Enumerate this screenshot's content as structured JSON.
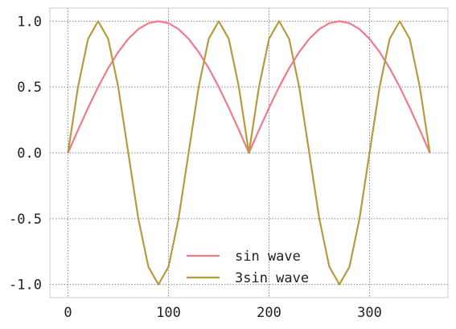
{
  "chart_data": {
    "type": "line",
    "title": "",
    "xlabel": "",
    "ylabel": "",
    "xlim": [
      -18,
      378
    ],
    "ylim": [
      -1.1,
      1.1
    ],
    "xticks": [
      0,
      100,
      200,
      300
    ],
    "xtick_labels": [
      "0",
      "100",
      "200",
      "300"
    ],
    "yticks": [
      1.0,
      0.5,
      0.0,
      -0.5,
      -1.0
    ],
    "ytick_labels": [
      "1.0",
      "0.5",
      "0.0",
      "-0.5",
      "-1.0"
    ],
    "grid": true,
    "legend_position": "lower-center",
    "x": [
      0,
      10,
      20,
      30,
      40,
      50,
      60,
      70,
      80,
      90,
      100,
      110,
      120,
      130,
      140,
      150,
      160,
      170,
      180,
      190,
      200,
      210,
      220,
      230,
      240,
      250,
      260,
      270,
      280,
      290,
      300,
      310,
      320,
      330,
      340,
      350,
      360
    ],
    "series": [
      {
        "name": "sin wave",
        "color": "#f07a8a",
        "values": [
          0.0,
          0.174,
          0.342,
          0.5,
          0.643,
          0.766,
          0.866,
          0.94,
          0.985,
          1.0,
          0.985,
          0.94,
          0.866,
          0.766,
          0.643,
          0.5,
          0.342,
          0.174,
          0.0,
          0.174,
          0.342,
          0.5,
          0.643,
          0.766,
          0.866,
          0.94,
          0.985,
          1.0,
          0.985,
          0.94,
          0.866,
          0.766,
          0.643,
          0.5,
          0.342,
          0.174,
          0.0
        ]
      },
      {
        "name": "3sin wave",
        "color": "#b89a3c",
        "values": [
          0.0,
          0.5,
          0.866,
          1.0,
          0.866,
          0.5,
          0.0,
          -0.5,
          -0.866,
          -1.0,
          -0.866,
          -0.5,
          0.0,
          0.5,
          0.866,
          1.0,
          0.866,
          0.5,
          0.0,
          0.5,
          0.866,
          1.0,
          0.866,
          0.5,
          0.0,
          -0.5,
          -0.866,
          -1.0,
          -0.866,
          -0.5,
          0.0,
          0.5,
          0.866,
          1.0,
          0.866,
          0.5,
          0.0
        ]
      }
    ]
  }
}
